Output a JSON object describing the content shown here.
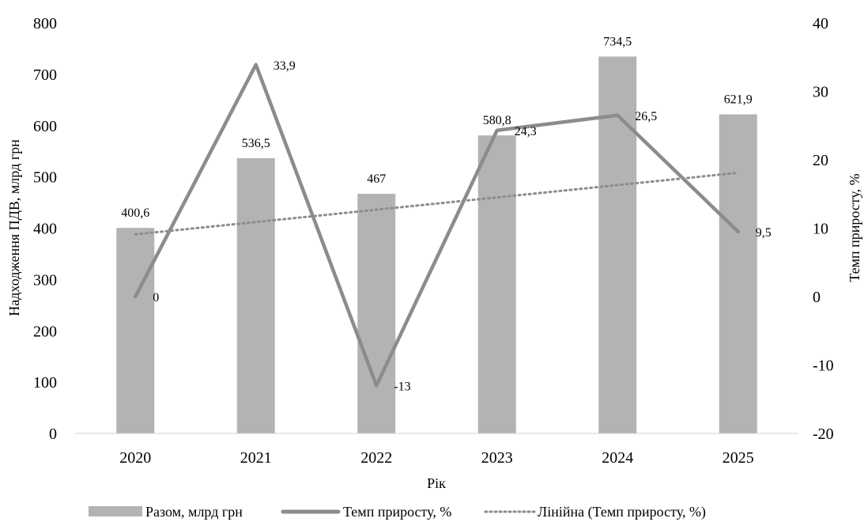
{
  "chart_data": {
    "type": "bar",
    "categories": [
      "2020",
      "2021",
      "2022",
      "2023",
      "2024",
      "2025"
    ],
    "xlabel": "Рік",
    "ylabel": "Надходження ПДВ, млрд грн",
    "y2label": "Темп приросту, %",
    "ylim": [
      0,
      800
    ],
    "yticks": [
      0,
      100,
      200,
      300,
      400,
      500,
      600,
      700,
      800
    ],
    "y2lim": [
      -20,
      40
    ],
    "y2ticks": [
      -20,
      -10,
      0,
      10,
      20,
      30,
      40
    ],
    "grid": false,
    "legend_position": "bottom",
    "series": [
      {
        "name": "Разом, млрд грн",
        "kind": "bar",
        "axis": "left",
        "color": "#b3b3b3",
        "values": [
          400.6,
          536.5,
          467,
          580.8,
          734.5,
          621.9
        ],
        "labels": [
          "400,6",
          "536,5",
          "467",
          "580,8",
          "734,5",
          "621,9"
        ]
      },
      {
        "name": "Темп приросту, %",
        "kind": "line",
        "axis": "right",
        "color": "#8c8c8c",
        "values": [
          0,
          33.9,
          -13,
          24.3,
          26.5,
          9.5
        ],
        "labels": [
          "0",
          "33,9",
          "-13",
          "24,3",
          "26,5",
          "9,5"
        ]
      },
      {
        "name": "Лінійна (Темп приросту, %)",
        "kind": "trendline",
        "axis": "right",
        "color": "#8c8c8c",
        "values": [
          9.1,
          10.9,
          12.7,
          14.5,
          16.3,
          18.1
        ]
      }
    ]
  }
}
